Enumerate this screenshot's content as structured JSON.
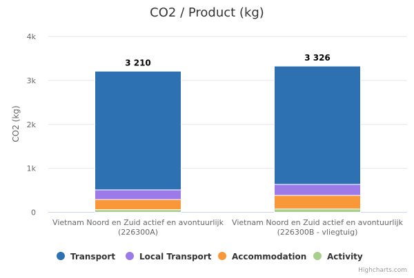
{
  "chart_data": {
    "type": "bar",
    "stacked": true,
    "title": "CO2 / Product (kg)",
    "ylabel": "CO2 (kg)",
    "xlabel": "",
    "ylim": [
      0,
      4000
    ],
    "yticks": [
      0,
      1000,
      2000,
      3000,
      4000
    ],
    "ytick_labels": [
      "0",
      "1k",
      "2k",
      "3k",
      "4k"
    ],
    "grid": true,
    "categories": [
      [
        "Vietnam Noord en Zuid actief en avontuurlijk",
        "(226300A)"
      ],
      [
        "Vietnam Noord en Zuid actief en avontuurlijk",
        "(226300B - vliegtuig)"
      ]
    ],
    "totals": [
      3210,
      3326
    ],
    "total_labels": [
      "3 210",
      "3 326"
    ],
    "series": [
      {
        "name": "Activity",
        "color": "#a8d08d",
        "values": [
          60,
          75
        ]
      },
      {
        "name": "Accommodation",
        "color": "#f89838",
        "values": [
          230,
          310
        ]
      },
      {
        "name": "Local Transport",
        "color": "#9c7ae8",
        "values": [
          220,
          250
        ]
      },
      {
        "name": "Transport",
        "color": "#2e71b3",
        "values": [
          2700,
          2691
        ]
      }
    ],
    "legend": {
      "placement": "bottom",
      "order": [
        "Transport",
        "Local Transport",
        "Accommodation",
        "Activity"
      ]
    },
    "credits": "Highcharts.com"
  }
}
